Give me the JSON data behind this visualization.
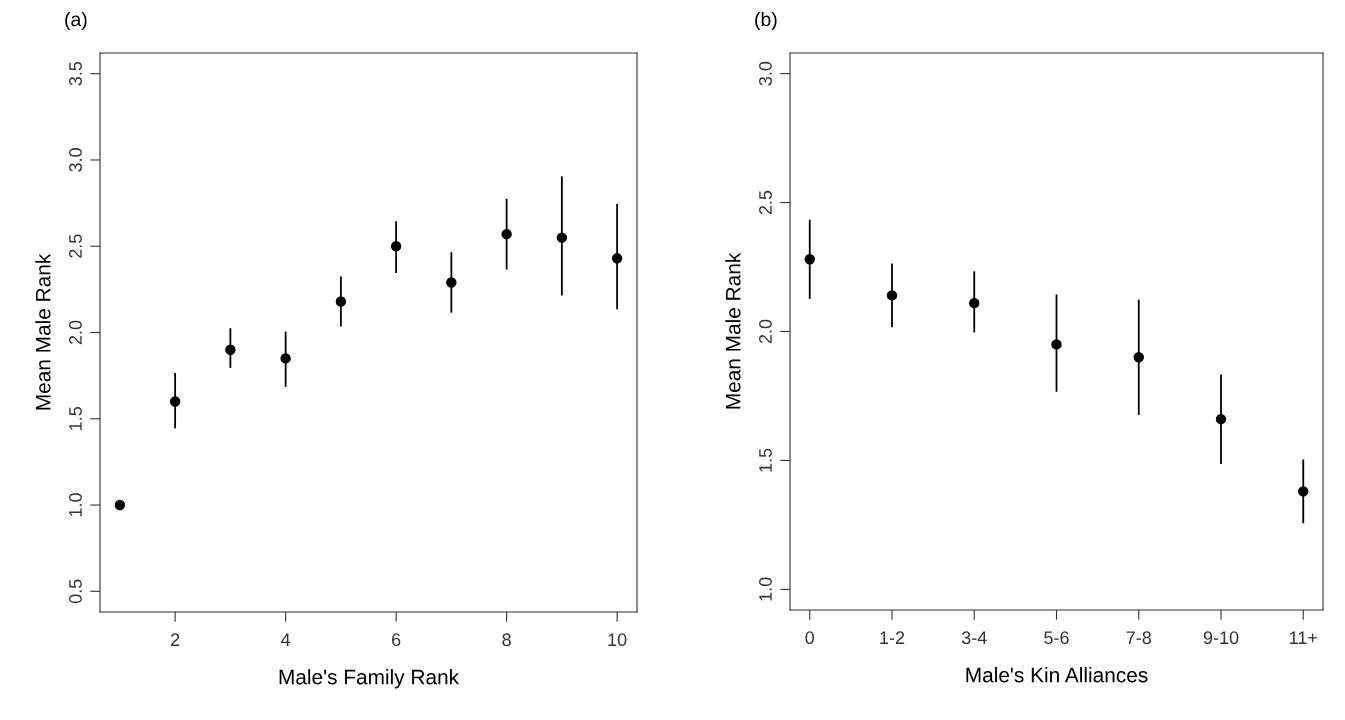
{
  "chart_data": [
    {
      "type": "scatter",
      "title": "(a)",
      "xlabel": "Male's Family Rank",
      "ylabel": "Mean Male Rank",
      "x": [
        1,
        2,
        3,
        4,
        5,
        6,
        7,
        8,
        9,
        10
      ],
      "values": [
        1.0,
        1.6,
        1.9,
        1.85,
        2.18,
        2.5,
        2.29,
        2.57,
        2.55,
        2.43
      ],
      "errors": [
        null,
        [
          1.45,
          1.76
        ],
        [
          1.8,
          2.02
        ],
        [
          1.69,
          2.0
        ],
        [
          2.04,
          2.32
        ],
        [
          2.35,
          2.64
        ],
        [
          2.12,
          2.46
        ],
        [
          2.37,
          2.77
        ],
        [
          2.22,
          2.9
        ],
        [
          2.14,
          2.74
        ]
      ],
      "color": "#000000",
      "marker": "circle",
      "xlim": [
        0.64,
        10.36
      ],
      "xticks": [
        2,
        4,
        6,
        8,
        10
      ],
      "ylim": [
        0.38,
        3.62
      ],
      "yticks": [
        {
          "value": 0.5,
          "label": "0.5"
        },
        {
          "value": 1,
          "label": "1.0"
        },
        {
          "value": 1.5,
          "label": "1.5"
        },
        {
          "value": 2,
          "label": "2.0"
        },
        {
          "value": 2.5,
          "label": "2.5"
        },
        {
          "value": 3,
          "label": "3.0"
        },
        {
          "value": 3.5,
          "label": "3.5"
        }
      ],
      "grid": false
    },
    {
      "type": "scatter",
      "title": "(b)",
      "xlabel": "Male's Kin Alliances",
      "ylabel": "Mean Male Rank",
      "categories": [
        "0",
        "1-2",
        "3-4",
        "5-6",
        "7-8",
        "9-10",
        "11+"
      ],
      "values": [
        2.28,
        2.14,
        2.11,
        1.95,
        1.9,
        1.66,
        1.38
      ],
      "errors": [
        [
          2.13,
          2.43
        ],
        [
          2.02,
          2.26
        ],
        [
          2.0,
          2.23
        ],
        [
          1.77,
          2.14
        ],
        [
          1.68,
          2.12
        ],
        [
          1.49,
          1.83
        ],
        [
          1.26,
          1.5
        ]
      ],
      "color": "#000000",
      "marker": "circle",
      "ylim": [
        0.92,
        3.08
      ],
      "yticks": [
        {
          "value": 1,
          "label": "1.0"
        },
        {
          "value": 1.5,
          "label": "1.5"
        },
        {
          "value": 2,
          "label": "2.0"
        },
        {
          "value": 2.5,
          "label": "2.5"
        },
        {
          "value": 3,
          "label": "3.0"
        }
      ],
      "grid": false
    }
  ]
}
